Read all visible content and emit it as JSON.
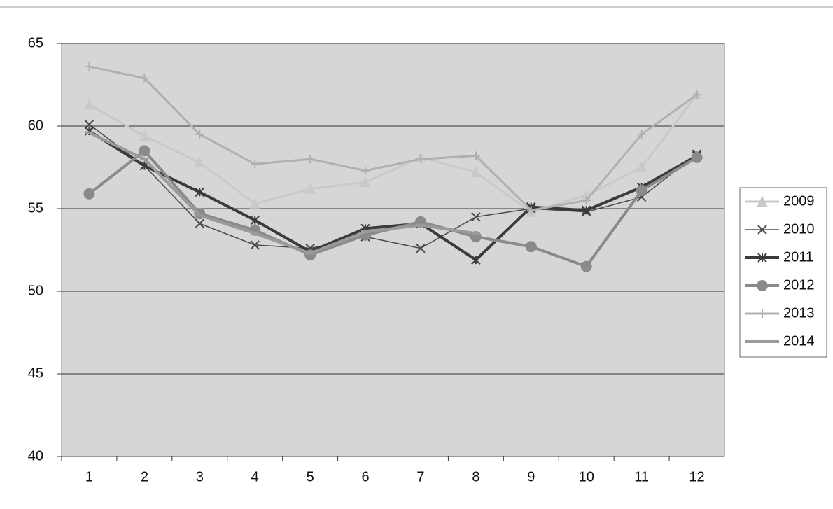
{
  "chart_data": {
    "type": "line",
    "categories": [
      "1",
      "2",
      "3",
      "4",
      "5",
      "6",
      "7",
      "8",
      "9",
      "10",
      "11",
      "12"
    ],
    "ylim": [
      40,
      65
    ],
    "yticks": [
      40,
      45,
      50,
      55,
      60,
      65
    ],
    "grid": true,
    "legend": "right",
    "series": [
      {
        "name": "2009",
        "color": "#c9c9c9",
        "width": 3,
        "marker": "triangle",
        "values": [
          61.3,
          59.4,
          57.8,
          55.3,
          56.2,
          56.6,
          58.1,
          57.2,
          54.8,
          55.8,
          57.5,
          61.9
        ]
      },
      {
        "name": "2010",
        "color": "#4a4a4a",
        "width": 1.5,
        "marker": "x",
        "values": [
          60.1,
          57.6,
          54.1,
          52.8,
          52.6,
          53.3,
          52.6,
          54.5,
          55.0,
          54.8,
          55.7,
          58.3
        ]
      },
      {
        "name": "2011",
        "color": "#3a3a3a",
        "width": 4,
        "marker": "star",
        "values": [
          59.7,
          57.6,
          56.0,
          54.3,
          52.4,
          53.8,
          54.1,
          51.9,
          55.1,
          54.9,
          56.3,
          58.2
        ]
      },
      {
        "name": "2012",
        "color": "#8a8a8a",
        "width": 4,
        "marker": "circle",
        "values": [
          55.9,
          58.5,
          54.7,
          53.7,
          52.2,
          53.4,
          54.2,
          53.3,
          52.7,
          51.5,
          56.1,
          58.1
        ]
      },
      {
        "name": "2013",
        "color": "#b0b0b0",
        "width": 3,
        "marker": "plus",
        "values": [
          63.6,
          62.9,
          59.5,
          57.7,
          58.0,
          57.3,
          58.0,
          58.2,
          54.9,
          55.5,
          59.5,
          61.9
        ]
      },
      {
        "name": "2014",
        "color": "#9a9a9a",
        "width": 4,
        "marker": "dash",
        "values": [
          59.6,
          58.0,
          54.6,
          53.5,
          52.3,
          53.6,
          54.0,
          53.5,
          null,
          null,
          null,
          null
        ]
      }
    ]
  }
}
